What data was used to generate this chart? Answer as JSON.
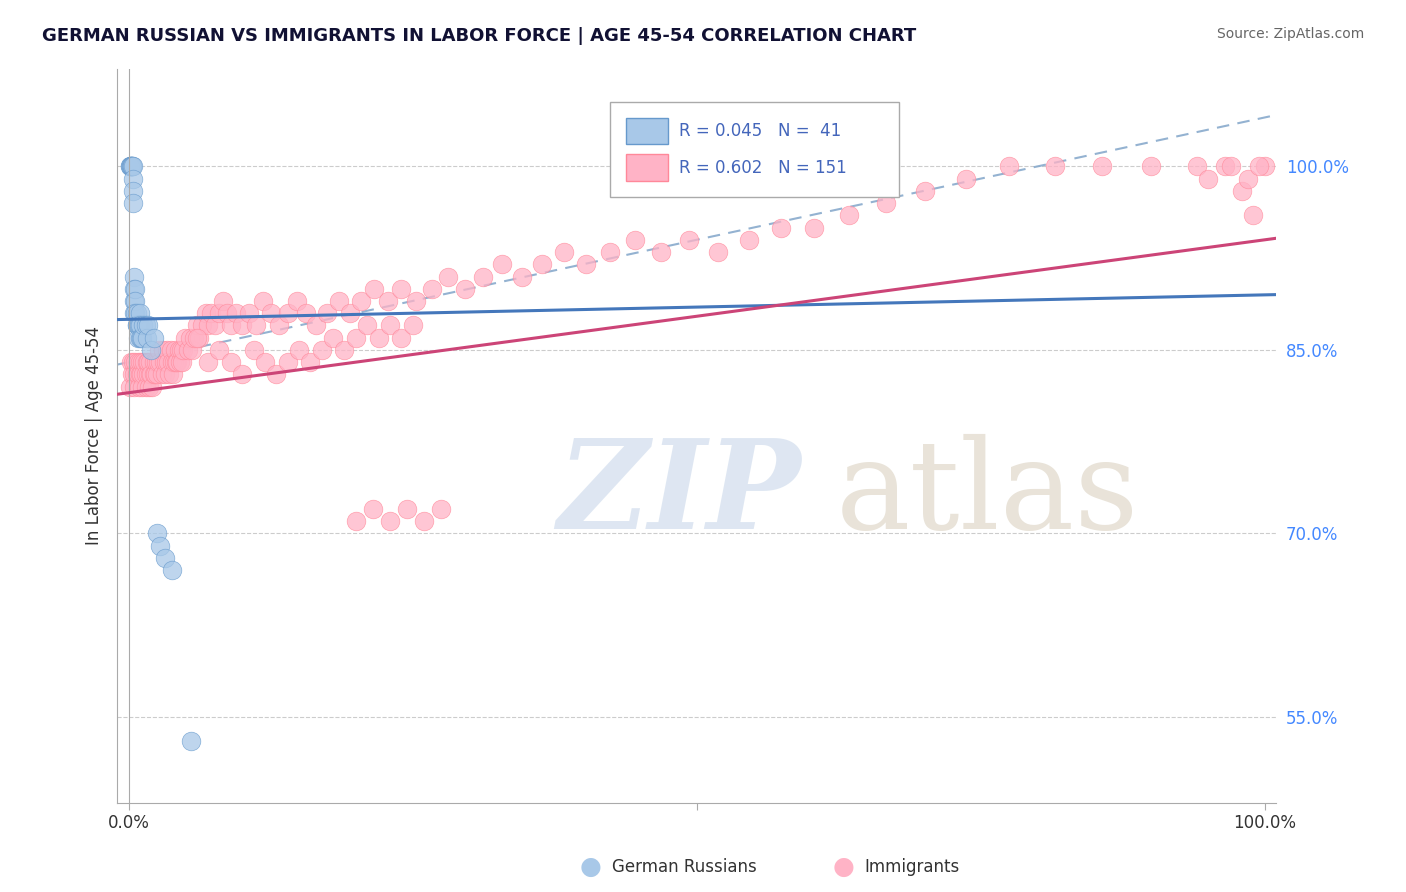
{
  "title": "GERMAN RUSSIAN VS IMMIGRANTS IN LABOR FORCE | AGE 45-54 CORRELATION CHART",
  "source": "Source: ZipAtlas.com",
  "ylabel": "In Labor Force | Age 45-54",
  "y_ticks": [
    0.55,
    0.7,
    0.85,
    1.0
  ],
  "y_tick_labels": [
    "55.0%",
    "70.0%",
    "85.0%",
    "100.0%"
  ],
  "blue_color": "#A8C8E8",
  "blue_edge_color": "#6699CC",
  "pink_color": "#FFB3C6",
  "pink_edge_color": "#FF8899",
  "blue_line_color": "#4477BB",
  "pink_line_color": "#CC4477",
  "dashed_line_color": "#88AACCAA",
  "grid_color": "#CCCCCC",
  "tick_color": "#4488FF",
  "watermark_zip_color": "#C8D8EC",
  "watermark_atlas_color": "#D8C8B0",
  "legend_text_color": "#4466BB",
  "blue_scatter_x": [
    0.001,
    0.001,
    0.002,
    0.002,
    0.002,
    0.003,
    0.003,
    0.003,
    0.004,
    0.004,
    0.004,
    0.004,
    0.005,
    0.005,
    0.005,
    0.005,
    0.006,
    0.006,
    0.006,
    0.007,
    0.007,
    0.007,
    0.008,
    0.008,
    0.009,
    0.01,
    0.01,
    0.01,
    0.011,
    0.012,
    0.013,
    0.015,
    0.016,
    0.017,
    0.02,
    0.022,
    0.025,
    0.028,
    0.032,
    0.038,
    0.055
  ],
  "blue_scatter_y": [
    1.0,
    1.0,
    1.0,
    1.0,
    1.0,
    1.0,
    1.0,
    1.0,
    1.0,
    0.99,
    0.98,
    0.97,
    0.91,
    0.9,
    0.89,
    0.88,
    0.9,
    0.89,
    0.88,
    0.88,
    0.87,
    0.87,
    0.87,
    0.86,
    0.87,
    0.88,
    0.87,
    0.86,
    0.86,
    0.86,
    0.87,
    0.87,
    0.86,
    0.87,
    0.85,
    0.86,
    0.7,
    0.69,
    0.68,
    0.67,
    0.53
  ],
  "pink_scatter_x": [
    0.001,
    0.002,
    0.003,
    0.004,
    0.005,
    0.005,
    0.006,
    0.007,
    0.008,
    0.008,
    0.009,
    0.01,
    0.01,
    0.011,
    0.012,
    0.012,
    0.013,
    0.014,
    0.015,
    0.015,
    0.016,
    0.017,
    0.017,
    0.018,
    0.019,
    0.019,
    0.02,
    0.021,
    0.022,
    0.022,
    0.023,
    0.024,
    0.025,
    0.026,
    0.027,
    0.028,
    0.029,
    0.03,
    0.031,
    0.032,
    0.033,
    0.034,
    0.035,
    0.036,
    0.037,
    0.038,
    0.039,
    0.04,
    0.041,
    0.042,
    0.043,
    0.044,
    0.045,
    0.046,
    0.047,
    0.048,
    0.05,
    0.052,
    0.054,
    0.056,
    0.058,
    0.06,
    0.062,
    0.065,
    0.068,
    0.07,
    0.073,
    0.076,
    0.08,
    0.083,
    0.087,
    0.09,
    0.095,
    0.1,
    0.106,
    0.112,
    0.118,
    0.125,
    0.132,
    0.14,
    0.148,
    0.156,
    0.165,
    0.175,
    0.185,
    0.195,
    0.205,
    0.216,
    0.228,
    0.24,
    0.253,
    0.267,
    0.281,
    0.296,
    0.312,
    0.329,
    0.346,
    0.364,
    0.383,
    0.403,
    0.424,
    0.446,
    0.469,
    0.493,
    0.519,
    0.546,
    0.574,
    0.603,
    0.634,
    0.667,
    0.701,
    0.737,
    0.775,
    0.815,
    0.857,
    0.9,
    0.94,
    0.965,
    0.98,
    0.99,
    1.0,
    0.95,
    0.97,
    0.985,
    0.995,
    0.06,
    0.07,
    0.08,
    0.09,
    0.1,
    0.11,
    0.12,
    0.13,
    0.14,
    0.15,
    0.16,
    0.17,
    0.18,
    0.19,
    0.2,
    0.21,
    0.22,
    0.23,
    0.24,
    0.25,
    0.2,
    0.215,
    0.23,
    0.245,
    0.26,
    0.275
  ],
  "pink_scatter_y": [
    0.82,
    0.84,
    0.83,
    0.84,
    0.83,
    0.82,
    0.84,
    0.83,
    0.84,
    0.83,
    0.82,
    0.84,
    0.83,
    0.83,
    0.84,
    0.82,
    0.83,
    0.84,
    0.83,
    0.82,
    0.84,
    0.83,
    0.84,
    0.82,
    0.83,
    0.84,
    0.83,
    0.82,
    0.84,
    0.83,
    0.83,
    0.84,
    0.83,
    0.84,
    0.85,
    0.84,
    0.83,
    0.85,
    0.84,
    0.83,
    0.84,
    0.85,
    0.84,
    0.83,
    0.85,
    0.84,
    0.83,
    0.84,
    0.85,
    0.84,
    0.84,
    0.85,
    0.84,
    0.85,
    0.84,
    0.85,
    0.86,
    0.85,
    0.86,
    0.85,
    0.86,
    0.87,
    0.86,
    0.87,
    0.88,
    0.87,
    0.88,
    0.87,
    0.88,
    0.89,
    0.88,
    0.87,
    0.88,
    0.87,
    0.88,
    0.87,
    0.89,
    0.88,
    0.87,
    0.88,
    0.89,
    0.88,
    0.87,
    0.88,
    0.89,
    0.88,
    0.89,
    0.9,
    0.89,
    0.9,
    0.89,
    0.9,
    0.91,
    0.9,
    0.91,
    0.92,
    0.91,
    0.92,
    0.93,
    0.92,
    0.93,
    0.94,
    0.93,
    0.94,
    0.93,
    0.94,
    0.95,
    0.95,
    0.96,
    0.97,
    0.98,
    0.99,
    1.0,
    1.0,
    1.0,
    1.0,
    1.0,
    1.0,
    0.98,
    0.96,
    1.0,
    0.99,
    1.0,
    0.99,
    1.0,
    0.86,
    0.84,
    0.85,
    0.84,
    0.83,
    0.85,
    0.84,
    0.83,
    0.84,
    0.85,
    0.84,
    0.85,
    0.86,
    0.85,
    0.86,
    0.87,
    0.86,
    0.87,
    0.86,
    0.87,
    0.71,
    0.72,
    0.71,
    0.72,
    0.71,
    0.72
  ]
}
